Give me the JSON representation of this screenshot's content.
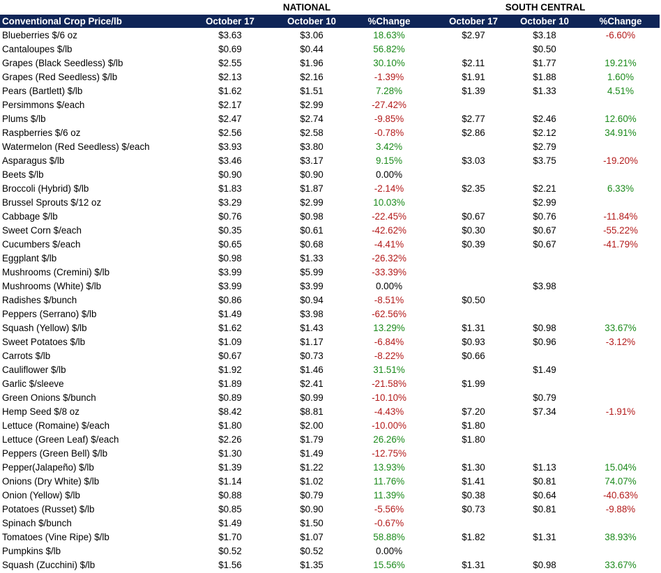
{
  "groups": {
    "national": "NATIONAL",
    "south_central": "SOUTH CENTRAL"
  },
  "columns": [
    "Conventional Crop Price/lb",
    "October 17",
    "October 10",
    "%Change",
    "October 17",
    "October 10",
    "%Change"
  ],
  "colors": {
    "header_bg": "#0f2557",
    "positive": "#1b8a1b",
    "negative": "#b31b1b"
  },
  "rows": [
    [
      "Blueberries $/6 oz",
      "$3.63",
      "$3.06",
      "18.63%",
      "$2.97",
      "$3.18",
      "-6.60%"
    ],
    [
      "Cantaloupes $/lb",
      "$0.69",
      "$0.44",
      "56.82%",
      "",
      "$0.50",
      ""
    ],
    [
      "Grapes (Black Seedless) $/lb",
      "$2.55",
      "$1.96",
      "30.10%",
      "$2.11",
      "$1.77",
      "19.21%"
    ],
    [
      "Grapes (Red Seedless) $/lb",
      "$2.13",
      "$2.16",
      "-1.39%",
      "$1.91",
      "$1.88",
      "1.60%"
    ],
    [
      "Pears (Bartlett) $/lb",
      "$1.62",
      "$1.51",
      "7.28%",
      "$1.39",
      "$1.33",
      "4.51%"
    ],
    [
      "Persimmons $/each",
      "$2.17",
      "$2.99",
      "-27.42%",
      "",
      "",
      ""
    ],
    [
      "Plums $/lb",
      "$2.47",
      "$2.74",
      "-9.85%",
      "$2.77",
      "$2.46",
      "12.60%"
    ],
    [
      "Raspberries $/6 oz",
      "$2.56",
      "$2.58",
      "-0.78%",
      "$2.86",
      "$2.12",
      "34.91%"
    ],
    [
      "Watermelon (Red Seedless) $/each",
      "$3.93",
      "$3.80",
      "3.42%",
      "",
      "$2.79",
      ""
    ],
    [
      "Asparagus $/lb",
      "$3.46",
      "$3.17",
      "9.15%",
      "$3.03",
      "$3.75",
      "-19.20%"
    ],
    [
      "Beets $/lb",
      "$0.90",
      "$0.90",
      "0.00%",
      "",
      "",
      ""
    ],
    [
      "Broccoli (Hybrid) $/lb",
      "$1.83",
      "$1.87",
      "-2.14%",
      "$2.35",
      "$2.21",
      "6.33%"
    ],
    [
      "Brussel Sprouts $/12 oz",
      "$3.29",
      "$2.99",
      "10.03%",
      "",
      "$2.99",
      ""
    ],
    [
      "Cabbage $/lb",
      "$0.76",
      "$0.98",
      "-22.45%",
      "$0.67",
      "$0.76",
      "-11.84%"
    ],
    [
      "Sweet Corn $/each",
      "$0.35",
      "$0.61",
      "-42.62%",
      "$0.30",
      "$0.67",
      "-55.22%"
    ],
    [
      "Cucumbers $/each",
      "$0.65",
      "$0.68",
      "-4.41%",
      "$0.39",
      "$0.67",
      "-41.79%"
    ],
    [
      "Eggplant $/lb",
      "$0.98",
      "$1.33",
      "-26.32%",
      "",
      "",
      ""
    ],
    [
      "Mushrooms (Cremini) $/lb",
      "$3.99",
      "$5.99",
      "-33.39%",
      "",
      "",
      ""
    ],
    [
      "Mushrooms (White) $/lb",
      "$3.99",
      "$3.99",
      "0.00%",
      "",
      "$3.98",
      ""
    ],
    [
      "Radishes $/bunch",
      "$0.86",
      "$0.94",
      "-8.51%",
      "$0.50",
      "",
      ""
    ],
    [
      "Peppers (Serrano) $/lb",
      "$1.49",
      "$3.98",
      "-62.56%",
      "",
      "",
      ""
    ],
    [
      "Squash (Yellow) $/lb",
      "$1.62",
      "$1.43",
      "13.29%",
      "$1.31",
      "$0.98",
      "33.67%"
    ],
    [
      "Sweet Potatoes $/lb",
      "$1.09",
      "$1.17",
      "-6.84%",
      "$0.93",
      "$0.96",
      "-3.12%"
    ],
    [
      "Carrots $/lb",
      "$0.67",
      "$0.73",
      "-8.22%",
      "$0.66",
      "",
      ""
    ],
    [
      "Cauliflower $/lb",
      "$1.92",
      "$1.46",
      "31.51%",
      "",
      "$1.49",
      ""
    ],
    [
      "Garlic $/sleeve",
      "$1.89",
      "$2.41",
      "-21.58%",
      "$1.99",
      "",
      ""
    ],
    [
      "Green Onions $/bunch",
      "$0.89",
      "$0.99",
      "-10.10%",
      "",
      "$0.79",
      ""
    ],
    [
      "Hemp Seed $/8 oz",
      "$8.42",
      "$8.81",
      "-4.43%",
      "$7.20",
      "$7.34",
      "-1.91%"
    ],
    [
      "Lettuce (Romaine) $/each",
      "$1.80",
      "$2.00",
      "-10.00%",
      "$1.80",
      "",
      ""
    ],
    [
      "Lettuce (Green Leaf) $/each",
      "$2.26",
      "$1.79",
      "26.26%",
      "$1.80",
      "",
      ""
    ],
    [
      "Peppers (Green Bell) $/lb",
      "$1.30",
      "$1.49",
      "-12.75%",
      "",
      "",
      ""
    ],
    [
      "Pepper(Jalapeño) $/lb",
      "$1.39",
      "$1.22",
      "13.93%",
      "$1.30",
      "$1.13",
      "15.04%"
    ],
    [
      "Onions (Dry White) $/lb",
      "$1.14",
      "$1.02",
      "11.76%",
      "$1.41",
      "$0.81",
      "74.07%"
    ],
    [
      "Onion (Yellow) $/lb",
      "$0.88",
      "$0.79",
      "11.39%",
      "$0.38",
      "$0.64",
      "-40.63%"
    ],
    [
      "Potatoes (Russet) $/lb",
      "$0.85",
      "$0.90",
      "-5.56%",
      "$0.73",
      "$0.81",
      "-9.88%"
    ],
    [
      "Spinach $/bunch",
      "$1.49",
      "$1.50",
      "-0.67%",
      "",
      "",
      ""
    ],
    [
      "Tomatoes (Vine Ripe) $/lb",
      "$1.70",
      "$1.07",
      "58.88%",
      "$1.82",
      "$1.31",
      "38.93%"
    ],
    [
      "Pumpkins $/lb",
      "$0.52",
      "$0.52",
      "0.00%",
      "",
      "",
      ""
    ],
    [
      "Squash (Zucchini) $/lb",
      "$1.56",
      "$1.35",
      "15.56%",
      "$1.31",
      "$0.98",
      "33.67%"
    ]
  ]
}
